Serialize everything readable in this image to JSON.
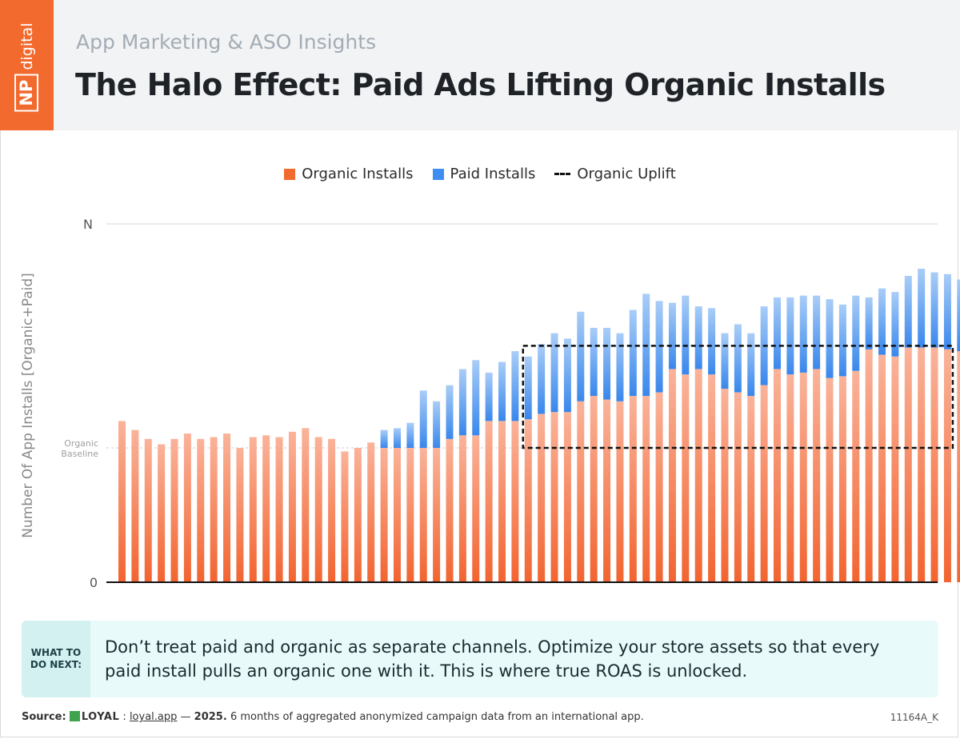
{
  "header": {
    "logo_np": "NP",
    "logo_digital": "digital",
    "subtitle": "App Marketing & ASO Insights",
    "title": "The Halo Effect: Paid Ads Lifting Organic Installs"
  },
  "colors": {
    "brand": "#f26a2e",
    "organic": "#f26a2e",
    "paid": "#3d8ef0",
    "uplift_box": "#111111"
  },
  "chart_data": {
    "type": "bar",
    "stacked": true,
    "ylabel": "Number Of App Installs [Organic+Paid]",
    "y_tick_labels": {
      "top": "N",
      "bottom": "0"
    },
    "ylim": [
      0,
      100
    ],
    "baseline": {
      "label_line1": "Organic",
      "label_line2": "Baseline",
      "value": 37.5
    },
    "uplift_box": {
      "label": "Organic Uplift",
      "from_bar": 31,
      "to_bar": 63,
      "y_low": 37.5,
      "y_high": 66
    },
    "legend": [
      {
        "name": "Organic Installs",
        "color": "#f26a2e",
        "style": "swatch"
      },
      {
        "name": "Paid Installs",
        "color": "#3d8ef0",
        "style": "swatch"
      },
      {
        "name": "Organic Uplift",
        "color": "#111111",
        "style": "dashed"
      }
    ],
    "series": [
      {
        "name": "Organic Installs",
        "values": [
          45,
          42.5,
          40,
          38.5,
          40,
          41.5,
          40,
          40.5,
          41.5,
          37.5,
          40.5,
          41,
          40.5,
          42,
          43,
          40.5,
          40,
          36.5,
          37.5,
          39,
          37.5,
          37.5,
          37.5,
          37.5,
          37.5,
          40,
          41,
          41,
          45,
          45,
          45,
          45.5,
          47,
          47.5,
          47.5,
          50.5,
          52,
          51,
          50.5,
          52,
          52,
          53,
          59.5,
          58,
          59.5,
          58,
          54,
          53,
          52,
          55,
          59.5,
          58,
          58.5,
          59.5,
          57,
          57.5,
          59,
          65,
          63.5,
          63,
          65.5,
          65.5,
          65.5,
          65,
          64.5
        ]
      },
      {
        "name": "Paid Installs",
        "values": [
          0,
          0,
          0,
          0,
          0,
          0,
          0,
          0,
          0,
          0,
          0,
          0,
          0,
          0,
          0,
          0,
          0,
          0,
          0,
          0,
          5,
          5.5,
          7,
          16,
          13,
          15,
          18.5,
          21,
          13.5,
          16.5,
          19.5,
          17.5,
          19.5,
          22,
          20.5,
          25,
          19,
          20,
          19,
          24,
          28.5,
          25.5,
          18.5,
          22,
          17.5,
          18.5,
          15.5,
          19,
          17.5,
          22,
          20,
          21.5,
          21.5,
          20.5,
          22,
          20,
          21,
          14.5,
          18.5,
          18,
          20,
          22,
          21,
          21,
          20
        ]
      }
    ]
  },
  "next_steps": {
    "tag_line1": "WHAT TO",
    "tag_line2": "DO NEXT:",
    "text": "Don’t treat paid and organic as separate channels. Optimize your store assets so that every paid install pulls an organic one with it. This is where true ROAS is unlocked."
  },
  "footer": {
    "source_label": "Source:",
    "brand": "LOYAL",
    "separator": ":",
    "link": "loyal.app",
    "dash": "—",
    "year": "2025.",
    "description": "6 months of aggregated anonymized campaign data from an international app.",
    "code": "11164A_K"
  }
}
